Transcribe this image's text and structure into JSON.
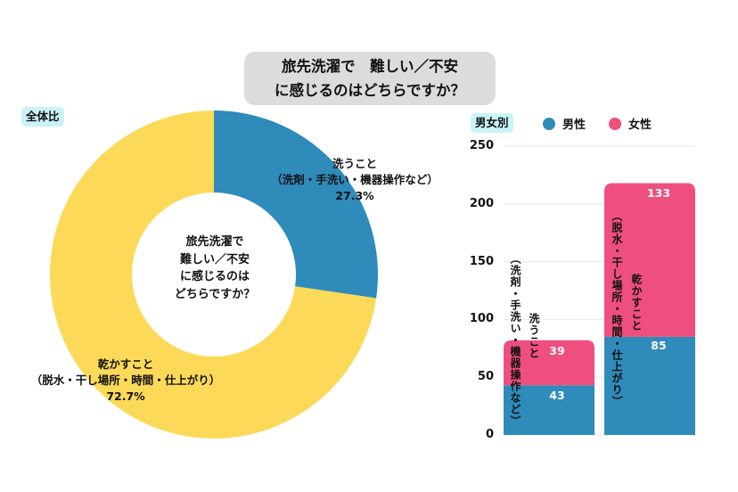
{
  "title": {
    "line1": "旅先洗濯で　難しい／不安",
    "line2": "に感じるのはどちらですか？"
  },
  "chart_data": [
    {
      "type": "pie",
      "variant": "donut",
      "tag": "全体比",
      "center_text": [
        "旅先洗濯で",
        "難しい／不安",
        "に感じるのは",
        "どちらですか？"
      ],
      "slices": [
        {
          "name": "洗うこと",
          "detail": "（洗剤・手洗い・機器操作など）",
          "value": 27.3,
          "label": "27.3%",
          "color": "#2e8bba"
        },
        {
          "name": "乾かすこと",
          "detail": "（脱水・干し場所・時間・仕上がり）",
          "value": 72.7,
          "label": "72.7%",
          "color": "#fcd958"
        }
      ]
    },
    {
      "type": "bar",
      "stacked": true,
      "tag": "男女別",
      "categories": [
        {
          "name": "洗うこと",
          "detail": "（洗剤・手洗い・機器操作など）"
        },
        {
          "name": "乾かすこと",
          "detail": "（脱水・干し場所・時間・仕上がり）"
        }
      ],
      "series": [
        {
          "name": "男性",
          "values": [
            43,
            85
          ],
          "color": "#2e8bba"
        },
        {
          "name": "女性",
          "values": [
            39,
            133
          ],
          "color": "#ee4f7f"
        }
      ],
      "ylim": [
        0,
        250
      ],
      "yticks": [
        "0",
        "50",
        "100",
        "150",
        "200",
        "250"
      ],
      "ytick_values": [
        0,
        50,
        100,
        150,
        200,
        250
      ],
      "grid": true,
      "legend_position": "top"
    }
  ]
}
